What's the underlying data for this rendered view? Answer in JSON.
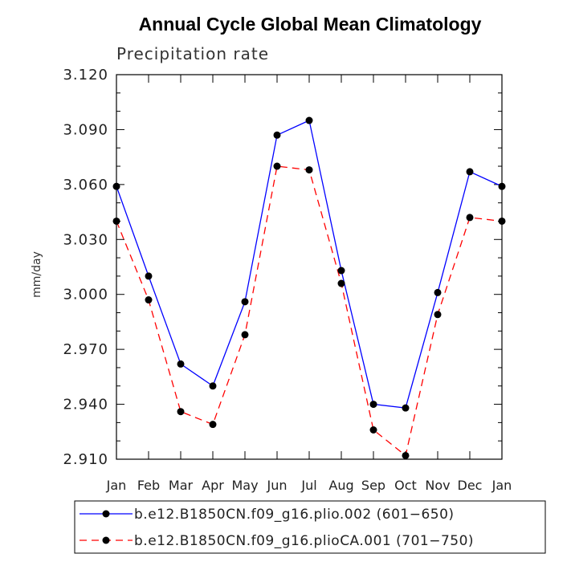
{
  "chart_data": {
    "type": "line",
    "title": "Annual Cycle Global Mean Climatology",
    "subtitle": "Precipitation rate",
    "ylabel": "mm/day",
    "xlabel": "",
    "categories": [
      "Jan",
      "Feb",
      "Mar",
      "Apr",
      "May",
      "Jun",
      "Jul",
      "Aug",
      "Sep",
      "Oct",
      "Nov",
      "Dec",
      "Jan"
    ],
    "ylim": [
      2.91,
      3.12
    ],
    "yticks": [
      "3.120",
      "3.090",
      "3.060",
      "3.030",
      "3.000",
      "2.970",
      "2.940",
      "2.910"
    ],
    "ytick_values": [
      3.12,
      3.09,
      3.06,
      3.03,
      3.0,
      2.97,
      2.94,
      2.91
    ],
    "grid": false,
    "legend_position": "bottom",
    "series": [
      {
        "name": "b.e12.B1850CN.f09_g16.plio.002 (601−650)",
        "color": "#0000ff",
        "dash": "solid",
        "marker": "filled-circle",
        "values": [
          3.059,
          3.01,
          2.962,
          2.95,
          2.996,
          3.087,
          3.095,
          3.013,
          2.94,
          2.938,
          3.001,
          3.067,
          3.059
        ]
      },
      {
        "name": "b.e12.B1850CN.f09_g16.plioCA.001 (701−750)",
        "color": "#ff0000",
        "dash": "dashed",
        "marker": "filled-circle",
        "values": [
          3.04,
          2.997,
          2.936,
          2.929,
          2.978,
          3.07,
          3.068,
          3.006,
          2.926,
          2.912,
          2.989,
          3.042,
          3.04
        ]
      }
    ]
  }
}
